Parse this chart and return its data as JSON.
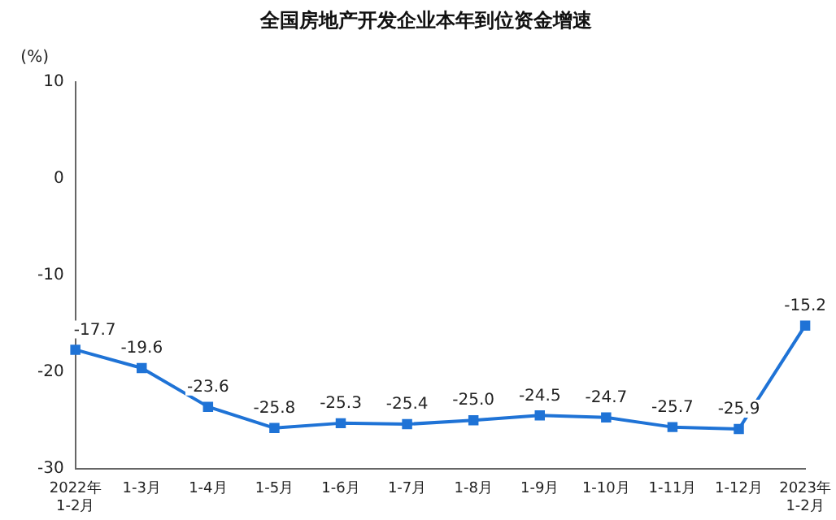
{
  "chart_data": {
    "type": "line",
    "title": "全国房地产开发企业本年到位资金增速",
    "ylabel": "(%)",
    "categories": [
      "2022年\n1-2月",
      "1-3月",
      "1-4月",
      "1-5月",
      "1-6月",
      "1-7月",
      "1-8月",
      "1-9月",
      "1-10月",
      "1-11月",
      "1-12月",
      "2023年\n1-2月"
    ],
    "series": [
      {
        "color": "#1f73d6",
        "values": [
          -17.7,
          -19.6,
          -23.6,
          -25.8,
          -25.3,
          -25.4,
          -25.0,
          -24.5,
          -24.7,
          -25.7,
          -25.9,
          -15.2
        ]
      }
    ],
    "value_labels": [
      "-17.7",
      "-19.6",
      "-23.6",
      "-25.8",
      "-25.3",
      "-25.4",
      "-25.0",
      "-24.5",
      "-24.7",
      "-25.7",
      "-25.9",
      "-15.2"
    ],
    "ylim": [
      -30,
      10
    ],
    "yticks": [
      10,
      0,
      -10,
      -20,
      -30
    ],
    "grid": false,
    "legend": false,
    "marker": "square",
    "line_style": "solid"
  }
}
